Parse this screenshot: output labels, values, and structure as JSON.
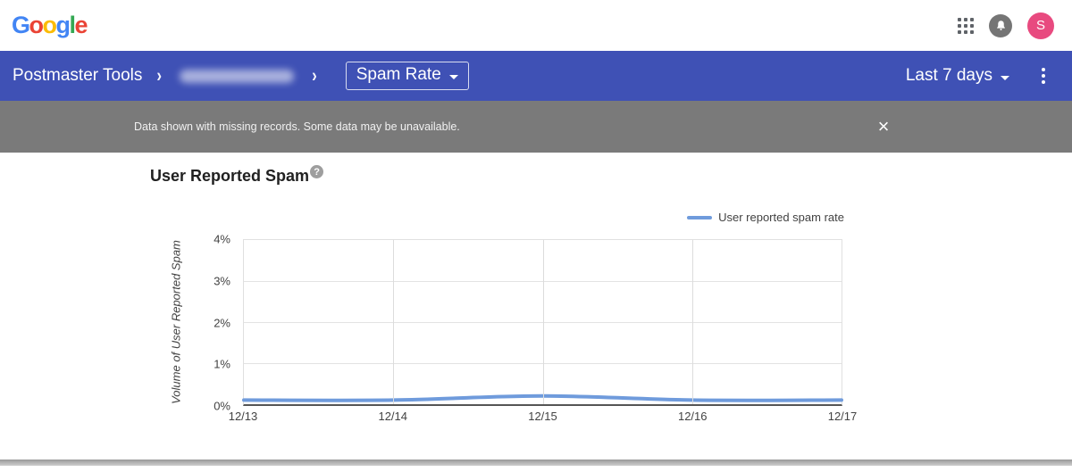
{
  "topbar": {
    "logo_letters": [
      {
        "ch": "G",
        "color": "#4285F4"
      },
      {
        "ch": "o",
        "color": "#EA4335"
      },
      {
        "ch": "o",
        "color": "#FBBC05"
      },
      {
        "ch": "g",
        "color": "#4285F4"
      },
      {
        "ch": "l",
        "color": "#34A853"
      },
      {
        "ch": "e",
        "color": "#EA4335"
      }
    ],
    "avatar_letter": "S",
    "avatar_color": "#E84A7F"
  },
  "navbar": {
    "bg": "#3F51B5",
    "brand": "Postmaster Tools",
    "page_selector": "Spam Rate",
    "date_range": "Last 7 days"
  },
  "banner": {
    "bg": "#7A7A7A",
    "message": "Data shown with missing records. Some data may be unavailable.",
    "close_glyph": "×"
  },
  "content": {
    "title": "User Reported Spam",
    "help_glyph": "?"
  },
  "chart_data": {
    "type": "line",
    "title": "User Reported Spam",
    "x": [
      "12/13",
      "12/14",
      "12/15",
      "12/16",
      "12/17"
    ],
    "series": [
      {
        "name": "User reported spam rate",
        "values": [
          0.1,
          0.1,
          0.2,
          0.1,
          0.1
        ],
        "color": "#6F9BDC"
      }
    ],
    "xlabel": "",
    "ylabel": "Volume of User Reported Spam",
    "ylim": [
      0,
      4
    ],
    "yticks": [
      "0%",
      "1%",
      "2%",
      "3%",
      "4%"
    ],
    "grid": true,
    "legend_position": "top-right"
  }
}
